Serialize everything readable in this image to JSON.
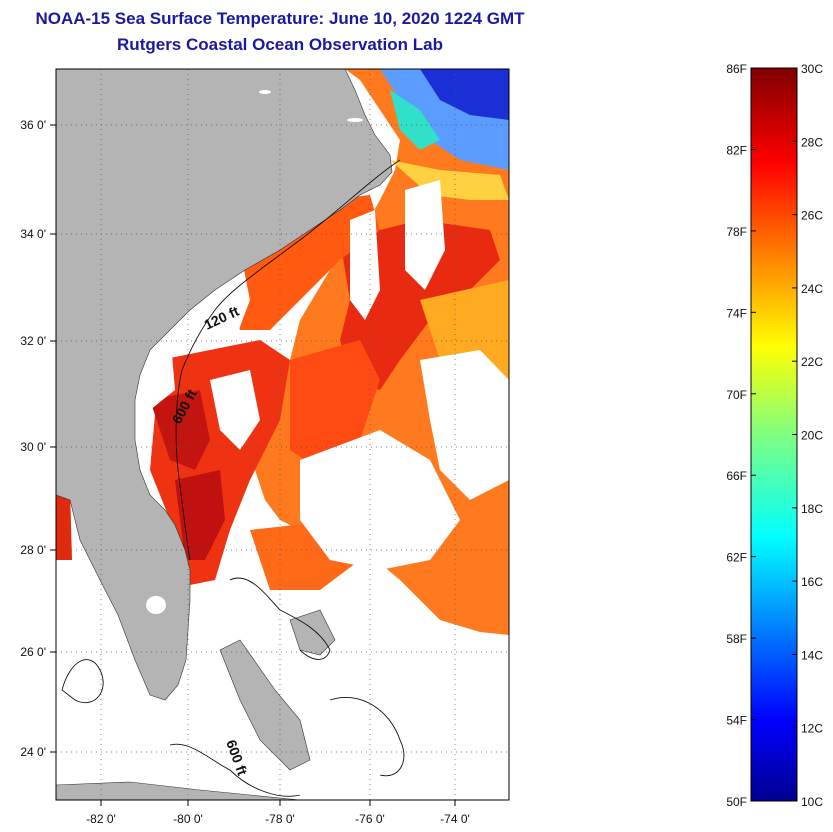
{
  "header": {
    "title": "NOAA-15 Sea Surface Temperature:  June 10, 2020 1224 GMT",
    "subtitle": "Rutgers Coastal Ocean Observation Lab"
  },
  "map": {
    "lon_ticks": [
      "-82 0'",
      "-80 0'",
      "-78 0'",
      "-76 0'",
      "-74 0'"
    ],
    "lat_ticks": [
      "36 0'",
      "34 0'",
      "32 0'",
      "30 0'",
      "28 0'",
      "26 0'",
      "24 0'"
    ],
    "contour_labels": [
      "120 ft",
      "600 ft",
      "600 ft"
    ],
    "colors": {
      "land": "#b4b4b4",
      "cloud": "#ffffff",
      "grid": "#555555"
    }
  },
  "colorbar": {
    "f_labels": [
      "86F",
      "82F",
      "78F",
      "74F",
      "70F",
      "66F",
      "62F",
      "58F",
      "54F",
      "50F"
    ],
    "c_labels": [
      "30C",
      "28C",
      "26C",
      "24C",
      "22C",
      "20C",
      "18C",
      "16C",
      "14C",
      "12C",
      "10C"
    ],
    "range_f": [
      50,
      86
    ],
    "range_c": [
      10,
      30
    ]
  }
}
